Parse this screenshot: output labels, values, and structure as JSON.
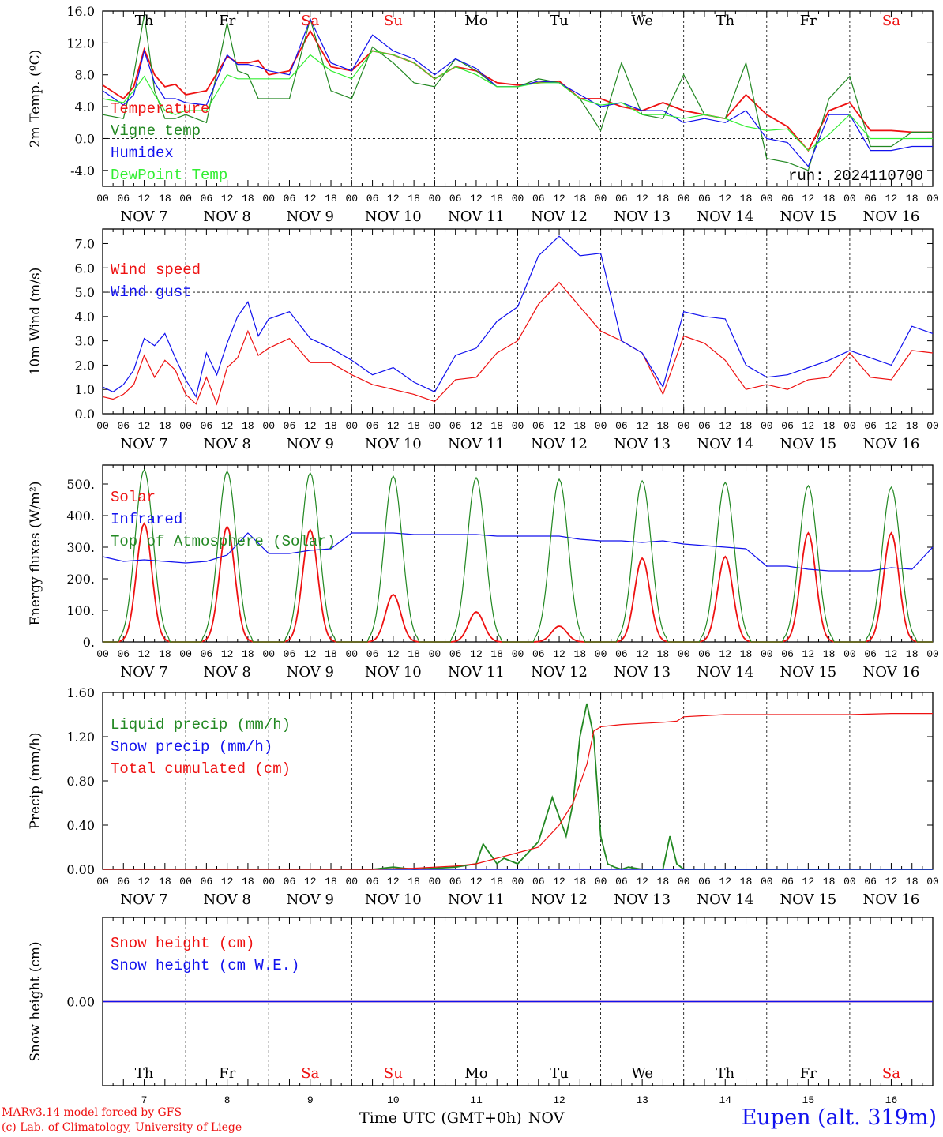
{
  "colors": {
    "temperature": "#ee1111",
    "vigne": "#228822",
    "humidex": "#1111ee",
    "dewpoint": "#33ee33",
    "snow_cm": "#ee1111",
    "snow_we": "#1111ee",
    "weekend": "#ee1111",
    "weekday": "#000000"
  },
  "time_axis": {
    "hour_labels": [
      "00",
      "06",
      "12",
      "18"
    ],
    "last_hour_label": "00",
    "date_labels": [
      "NOV  7",
      "NOV  8",
      "NOV  9",
      "NOV 10",
      "NOV 11",
      "NOV 12",
      "NOV 13",
      "NOV 14",
      "NOV 15",
      "NOV 16"
    ],
    "day_abbrev": [
      "Th",
      "Fr",
      "Sa",
      "Su",
      "Mo",
      "Tu",
      "We",
      "Th",
      "Fr",
      "Sa"
    ],
    "weekend_flags": [
      false,
      false,
      true,
      true,
      false,
      false,
      false,
      false,
      false,
      true
    ],
    "day_numbers": [
      "7",
      "8",
      "9",
      "10",
      "11",
      "12",
      "13",
      "14",
      "15",
      "16"
    ],
    "xlabel": "Time UTC (GMT+0h)",
    "xlabel_month": "NOV"
  },
  "footer": {
    "credit1": "MARv3.14 model forced by GFS",
    "credit2": "(c) Lab. of Climatology, University of Liege",
    "station": "Eupen (alt. 319m)"
  },
  "chart_data": [
    {
      "type": "line",
      "title": "",
      "ylabel": "2m Temp. (ºC)",
      "ylim": [
        -6,
        16
      ],
      "yticks": [
        "16.0",
        "12.0",
        "8.0",
        "4.0",
        "0.0",
        "-4.0"
      ],
      "ytick_values": [
        16,
        12,
        8,
        4,
        0,
        -4
      ],
      "dashed_ref": 0,
      "annotation": "run: 2024110700",
      "x_unit": "hours since NOV 7 00 UTC",
      "series": [
        {
          "name": "Temperature",
          "color_key": "temperature",
          "x": [
            0,
            6,
            9,
            12,
            15,
            18,
            21,
            24,
            30,
            36,
            39,
            42,
            45,
            48,
            54,
            60,
            66,
            72,
            78,
            84,
            90,
            96,
            102,
            108,
            114,
            120,
            126,
            132,
            138,
            144,
            150,
            156,
            162,
            168,
            174,
            180,
            186,
            192,
            198,
            204,
            210,
            216,
            222,
            228,
            234,
            240
          ],
          "y": [
            6.7,
            5.0,
            6.5,
            11.2,
            8.0,
            6.5,
            6.8,
            5.5,
            6.0,
            10.3,
            9.5,
            9.5,
            9.8,
            8.0,
            8.5,
            13.5,
            9.0,
            8.5,
            11.0,
            10.5,
            9.5,
            7.5,
            9.0,
            8.5,
            7.0,
            6.7,
            7.0,
            7.2,
            5.0,
            5.0,
            4.0,
            3.5,
            4.5,
            3.5,
            3.0,
            2.5,
            5.5,
            3.0,
            1.5,
            -1.5,
            3.5,
            4.5,
            1.0,
            1.0,
            0.8,
            0.8
          ]
        },
        {
          "name": "Vigne temp",
          "color_key": "vigne",
          "x": [
            0,
            6,
            9,
            12,
            15,
            18,
            21,
            24,
            30,
            36,
            39,
            42,
            45,
            48,
            54,
            60,
            66,
            72,
            78,
            84,
            90,
            96,
            102,
            108,
            114,
            120,
            126,
            132,
            138,
            144,
            150,
            156,
            162,
            168,
            174,
            180,
            186,
            192,
            198,
            204,
            210,
            216,
            222,
            228,
            234,
            240
          ],
          "y": [
            3.0,
            2.5,
            8.0,
            15.5,
            6.0,
            2.5,
            2.5,
            3.0,
            2.0,
            14.5,
            8.5,
            8.0,
            5.0,
            5.0,
            5.0,
            15.0,
            6.0,
            5.0,
            11.5,
            9.5,
            7.0,
            6.5,
            10.0,
            8.5,
            6.5,
            6.5,
            7.5,
            7.0,
            5.0,
            1.0,
            9.5,
            3.0,
            2.5,
            8.0,
            3.0,
            2.5,
            9.5,
            -2.5,
            -3.0,
            -4.0,
            5.0,
            7.8,
            -1.0,
            -1.0,
            0.8,
            0.8
          ]
        },
        {
          "name": "Humidex",
          "color_key": "humidex",
          "x": [
            0,
            6,
            9,
            12,
            15,
            18,
            21,
            24,
            30,
            36,
            39,
            42,
            45,
            48,
            54,
            60,
            66,
            72,
            78,
            84,
            90,
            96,
            102,
            108,
            114,
            120,
            126,
            132,
            138,
            144,
            150,
            156,
            162,
            168,
            174,
            180,
            186,
            192,
            198,
            204,
            210,
            216,
            222,
            228,
            234,
            240
          ],
          "y": [
            6.0,
            4.2,
            5.5,
            11.0,
            7.0,
            5.0,
            5.0,
            4.5,
            4.2,
            10.5,
            9.3,
            9.3,
            9.0,
            8.5,
            8.0,
            15.0,
            9.5,
            8.5,
            13.0,
            11.0,
            10.0,
            8.0,
            10.0,
            8.8,
            6.5,
            6.5,
            7.2,
            7.0,
            5.5,
            4.0,
            4.5,
            3.5,
            3.5,
            2.0,
            2.5,
            2.0,
            3.5,
            0.0,
            -0.5,
            -3.5,
            3.0,
            3.0,
            -1.5,
            -1.5,
            -1.0,
            -1.0
          ]
        },
        {
          "name": "DewPoint Temp",
          "color_key": "dewpoint",
          "x": [
            0,
            6,
            9,
            12,
            15,
            18,
            21,
            24,
            30,
            36,
            39,
            42,
            45,
            48,
            54,
            60,
            66,
            72,
            78,
            84,
            90,
            96,
            102,
            108,
            114,
            120,
            126,
            132,
            138,
            144,
            150,
            156,
            162,
            168,
            174,
            180,
            186,
            192,
            198,
            204,
            210,
            216,
            222,
            228,
            234,
            240
          ],
          "y": [
            5.0,
            4.5,
            6.0,
            7.8,
            5.5,
            3.5,
            3.0,
            3.5,
            3.5,
            8.0,
            7.5,
            7.5,
            7.5,
            7.5,
            7.5,
            10.5,
            8.5,
            7.5,
            11.0,
            10.5,
            9.5,
            7.5,
            9.0,
            8.0,
            6.5,
            6.5,
            7.0,
            7.0,
            5.0,
            4.2,
            4.5,
            3.0,
            3.0,
            2.5,
            3.0,
            2.5,
            1.5,
            1.0,
            1.2,
            -1.5,
            0.5,
            3.0,
            0.0,
            0.0,
            0.0,
            0.0
          ]
        }
      ]
    },
    {
      "type": "line",
      "title": "",
      "ylabel": "10m Wind (m/s)",
      "ylim": [
        0,
        7.6
      ],
      "yticks": [
        "7.0",
        "6.0",
        "5.0",
        "4.0",
        "3.0",
        "2.0",
        "1.0",
        "0.0"
      ],
      "ytick_values": [
        7,
        6,
        5,
        4,
        3,
        2,
        1,
        0
      ],
      "dashed_ref": 5,
      "annotation": "",
      "x_unit": "hours since NOV 7 00 UTC",
      "series": [
        {
          "name": "Wind speed",
          "color_key": "temperature",
          "x": [
            0,
            3,
            6,
            9,
            12,
            15,
            18,
            21,
            24,
            27,
            30,
            33,
            36,
            39,
            42,
            45,
            48,
            54,
            60,
            66,
            72,
            78,
            84,
            90,
            96,
            102,
            108,
            114,
            120,
            126,
            132,
            138,
            144,
            150,
            156,
            162,
            168,
            174,
            180,
            186,
            192,
            198,
            204,
            210,
            216,
            222,
            228,
            234,
            240
          ],
          "y": [
            0.7,
            0.6,
            0.8,
            1.2,
            2.4,
            1.5,
            2.2,
            1.8,
            0.8,
            0.4,
            1.5,
            0.4,
            1.9,
            2.3,
            3.4,
            2.4,
            2.7,
            3.1,
            2.1,
            2.1,
            1.6,
            1.2,
            1.0,
            0.8,
            0.5,
            1.4,
            1.5,
            2.5,
            3.0,
            4.5,
            5.4,
            4.4,
            3.4,
            3.0,
            2.5,
            0.8,
            3.2,
            2.9,
            2.2,
            1.0,
            1.2,
            1.0,
            1.4,
            1.5,
            2.5,
            1.5,
            1.4,
            2.6,
            2.5
          ]
        },
        {
          "name": "Wind gust",
          "color_key": "humidex",
          "x": [
            0,
            3,
            6,
            9,
            12,
            15,
            18,
            21,
            24,
            27,
            30,
            33,
            36,
            39,
            42,
            45,
            48,
            54,
            60,
            66,
            72,
            78,
            84,
            90,
            96,
            102,
            108,
            114,
            120,
            126,
            132,
            138,
            144,
            150,
            156,
            162,
            168,
            174,
            180,
            186,
            192,
            198,
            204,
            210,
            216,
            222,
            228,
            234,
            240
          ],
          "y": [
            1.1,
            0.9,
            1.2,
            1.8,
            3.1,
            2.8,
            3.3,
            2.3,
            1.4,
            0.7,
            2.5,
            1.6,
            2.9,
            4.0,
            4.6,
            3.2,
            3.9,
            4.2,
            3.1,
            2.7,
            2.2,
            1.6,
            1.9,
            1.3,
            0.9,
            2.4,
            2.7,
            3.8,
            4.4,
            6.5,
            7.3,
            6.5,
            6.6,
            3.0,
            2.5,
            1.1,
            4.2,
            4.0,
            3.9,
            2.0,
            1.5,
            1.6,
            1.9,
            2.2,
            2.6,
            2.3,
            2.0,
            3.6,
            3.3
          ]
        }
      ]
    },
    {
      "type": "line",
      "title": "",
      "ylabel": "Energy fluxes (W/m²)",
      "ylim": [
        0,
        560
      ],
      "yticks": [
        "500.",
        "400.",
        "300.",
        "200.",
        "100.",
        "0."
      ],
      "ytick_values": [
        500,
        400,
        300,
        200,
        100,
        0
      ],
      "dashed_ref": null,
      "annotation": "",
      "x_unit": "hours since NOV 7 00 UTC",
      "day_peaks_solar": [
        375,
        365,
        355,
        150,
        95,
        50,
        265,
        270,
        345,
        345
      ],
      "day_peaks_toa": [
        545,
        540,
        535,
        525,
        520,
        515,
        510,
        505,
        495,
        490
      ],
      "series": [
        {
          "name": "Solar",
          "color_key": "temperature",
          "note": "daily peaks near 12 UTC",
          "peaks": [
            375,
            365,
            355,
            150,
            95,
            50,
            265,
            270,
            345,
            345
          ]
        },
        {
          "name": "Infrared",
          "color_key": "humidex",
          "x": [
            0,
            6,
            12,
            18,
            24,
            30,
            36,
            42,
            48,
            54,
            60,
            66,
            72,
            78,
            84,
            90,
            96,
            102,
            108,
            114,
            120,
            126,
            132,
            138,
            144,
            150,
            156,
            162,
            168,
            174,
            180,
            186,
            192,
            198,
            204,
            210,
            216,
            222,
            228,
            234,
            240
          ],
          "y": [
            270,
            255,
            260,
            255,
            250,
            255,
            275,
            345,
            280,
            280,
            290,
            295,
            345,
            345,
            345,
            340,
            340,
            340,
            340,
            335,
            335,
            335,
            335,
            325,
            320,
            320,
            315,
            320,
            310,
            305,
            300,
            295,
            240,
            240,
            230,
            225,
            225,
            225,
            235,
            230,
            300
          ]
        },
        {
          "name": "Top of Atmosphere (Solar)",
          "color_key": "vigne",
          "note": "daily peaks near 12 UTC",
          "peaks": [
            545,
            540,
            535,
            525,
            520,
            515,
            510,
            505,
            495,
            490
          ]
        }
      ]
    },
    {
      "type": "line",
      "title": "",
      "ylabel": "Precip (mm/h)",
      "ylim": [
        0,
        1.6
      ],
      "yticks": [
        "1.60",
        "1.20",
        "0.80",
        "0.40",
        "0.00"
      ],
      "ytick_values": [
        1.6,
        1.2,
        0.8,
        0.4,
        0.0
      ],
      "dashed_ref": null,
      "annotation": "",
      "x_unit": "hours since NOV 7 00 UTC",
      "series": [
        {
          "name": "Liquid precip (mm/h)",
          "color_key": "vigne",
          "x": [
            0,
            78,
            84,
            90,
            96,
            102,
            108,
            110,
            114,
            116,
            120,
            126,
            130,
            134,
            136,
            138,
            140,
            142,
            144,
            146,
            148,
            150,
            152,
            156,
            162,
            164,
            166,
            168,
            174,
            180,
            186,
            192,
            198,
            204,
            210,
            216,
            222,
            228,
            234,
            240
          ],
          "y": [
            0,
            0,
            0.02,
            0,
            0.01,
            0.02,
            0.05,
            0.23,
            0.05,
            0.1,
            0.05,
            0.25,
            0.65,
            0.3,
            0.6,
            1.2,
            1.5,
            1.2,
            0.3,
            0.05,
            0.02,
            0.0,
            0.02,
            0.0,
            0.0,
            0.3,
            0.05,
            0.0,
            0,
            0,
            0,
            0,
            0,
            0,
            0,
            0,
            0,
            0,
            0,
            0
          ]
        },
        {
          "name": "Snow precip (mm/h)",
          "color_key": "humidex",
          "x": [
            0,
            240
          ],
          "y": [
            0,
            0
          ]
        },
        {
          "name": "Total cumulated (cm)",
          "color_key": "temperature",
          "x": [
            0,
            78,
            90,
            102,
            108,
            114,
            120,
            126,
            132,
            136,
            140,
            142,
            144,
            150,
            156,
            162,
            166,
            168,
            174,
            180,
            192,
            204,
            216,
            228,
            240
          ],
          "y": [
            0,
            0,
            0.01,
            0.03,
            0.05,
            0.1,
            0.15,
            0.2,
            0.4,
            0.6,
            0.95,
            1.25,
            1.29,
            1.31,
            1.32,
            1.33,
            1.34,
            1.38,
            1.39,
            1.4,
            1.4,
            1.4,
            1.4,
            1.41,
            1.41
          ]
        }
      ]
    },
    {
      "type": "line",
      "title": "",
      "ylabel": "Snow height (cm)",
      "ylim": [
        -1,
        1
      ],
      "yticks": [
        "0.00"
      ],
      "ytick_values": [
        0
      ],
      "dashed_ref": null,
      "annotation": "",
      "x_unit": "hours since NOV 7 00 UTC",
      "series": [
        {
          "name": "Snow height (cm)",
          "color_key": "snow_cm",
          "x": [
            0,
            240
          ],
          "y": [
            0,
            0
          ]
        },
        {
          "name": "Snow height (cm W.E.)",
          "color_key": "snow_we",
          "x": [
            0,
            240
          ],
          "y": [
            0,
            0
          ]
        }
      ]
    }
  ]
}
